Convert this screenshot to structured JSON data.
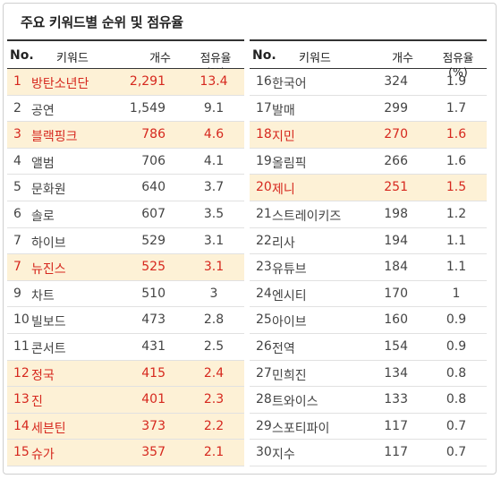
{
  "title": "주요 키워드별 순위 및 점유율",
  "header": {
    "no": "No.",
    "keyword": "키워드",
    "count": "개수",
    "share": "점유율(%)"
  },
  "left_rows": [
    {
      "no": "1",
      "keyword": "방탄소년단",
      "count": "2,291",
      "share": "13.4",
      "highlight": true
    },
    {
      "no": "2",
      "keyword": "공연",
      "count": "1,549",
      "share": "9.1",
      "highlight": false
    },
    {
      "no": "3",
      "keyword": "블랙핑크",
      "count": "786",
      "share": "4.6",
      "highlight": true
    },
    {
      "no": "4",
      "keyword": "앨범",
      "count": "706",
      "share": "4.1",
      "highlight": false
    },
    {
      "no": "5",
      "keyword": "문화원",
      "count": "640",
      "share": "3.7",
      "highlight": false
    },
    {
      "no": "6",
      "keyword": "솔로",
      "count": "607",
      "share": "3.5",
      "highlight": false
    },
    {
      "no": "7",
      "keyword": "하이브",
      "count": "529",
      "share": "3.1",
      "highlight": false
    },
    {
      "no": "7",
      "keyword": "뉴진스",
      "count": "525",
      "share": "3.1",
      "highlight": true
    },
    {
      "no": "9",
      "keyword": "차트",
      "count": "510",
      "share": "3",
      "highlight": false
    },
    {
      "no": "10",
      "keyword": "빌보드",
      "count": "473",
      "share": "2.8",
      "highlight": false
    },
    {
      "no": "11",
      "keyword": "콘서트",
      "count": "431",
      "share": "2.5",
      "highlight": false
    },
    {
      "no": "12",
      "keyword": "정국",
      "count": "415",
      "share": "2.4",
      "highlight": true
    },
    {
      "no": "13",
      "keyword": "진",
      "count": "401",
      "share": "2.3",
      "highlight": true
    },
    {
      "no": "14",
      "keyword": "세븐틴",
      "count": "373",
      "share": "2.2",
      "highlight": true
    },
    {
      "no": "15",
      "keyword": "슈가",
      "count": "357",
      "share": "2.1",
      "highlight": true
    }
  ],
  "right_rows": [
    {
      "no": "16",
      "keyword": "한국어",
      "count": "324",
      "share": "1.9",
      "highlight": false
    },
    {
      "no": "17",
      "keyword": "발매",
      "count": "299",
      "share": "1.7",
      "highlight": false
    },
    {
      "no": "18",
      "keyword": "지민",
      "count": "270",
      "share": "1.6",
      "highlight": true
    },
    {
      "no": "19",
      "keyword": "올림픽",
      "count": "266",
      "share": "1.6",
      "highlight": false
    },
    {
      "no": "20",
      "keyword": "제니",
      "count": "251",
      "share": "1.5",
      "highlight": true
    },
    {
      "no": "21",
      "keyword": "스트레이키즈",
      "count": "198",
      "share": "1.2",
      "highlight": false
    },
    {
      "no": "22",
      "keyword": "리사",
      "count": "194",
      "share": "1.1",
      "highlight": false
    },
    {
      "no": "23",
      "keyword": "유튜브",
      "count": "184",
      "share": "1.1",
      "highlight": false
    },
    {
      "no": "24",
      "keyword": "엔시티",
      "count": "170",
      "share": "1",
      "highlight": false
    },
    {
      "no": "25",
      "keyword": "아이브",
      "count": "160",
      "share": "0.9",
      "highlight": false
    },
    {
      "no": "26",
      "keyword": "전역",
      "count": "154",
      "share": "0.9",
      "highlight": false
    },
    {
      "no": "27",
      "keyword": "민희진",
      "count": "134",
      "share": "0.8",
      "highlight": false
    },
    {
      "no": "28",
      "keyword": "트와이스",
      "count": "133",
      "share": "0.8",
      "highlight": false
    },
    {
      "no": "29",
      "keyword": "스포티파이",
      "count": "117",
      "share": "0.7",
      "highlight": false
    },
    {
      "no": "30",
      "keyword": "지수",
      "count": "117",
      "share": "0.7",
      "highlight": false
    }
  ]
}
